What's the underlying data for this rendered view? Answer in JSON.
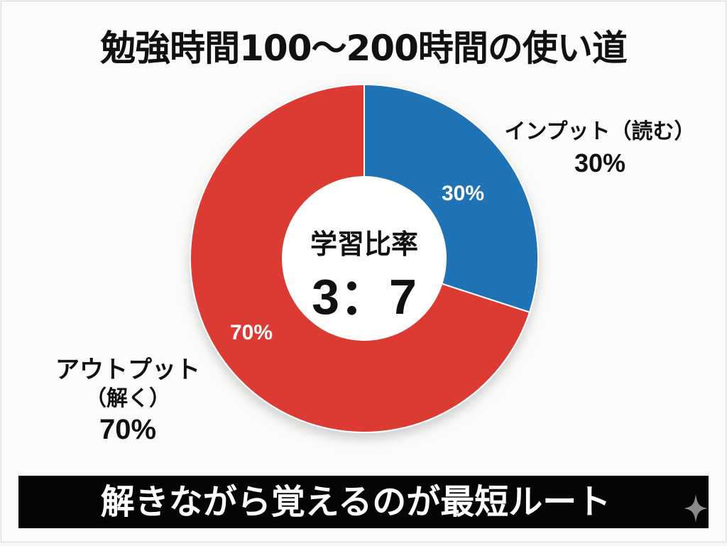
{
  "title": "勉強時間100〜200時間の使い道",
  "chart_data": {
    "type": "pie",
    "variant": "donut",
    "title": "勉強時間100〜200時間の使い道",
    "categories": [
      "インプット（読む）",
      "アウトプット（解く）"
    ],
    "values": [
      30,
      70
    ],
    "unit": "%",
    "colors": [
      "#1f72b4",
      "#dc3b33"
    ],
    "slice_labels": [
      "30%",
      "70%"
    ],
    "center_text": [
      "学習比率",
      "3：7"
    ],
    "start_angle_deg": 0,
    "direction": "clockwise",
    "legend": "callouts outside slices"
  },
  "center": {
    "title": "学習比率",
    "ratio": "3：7"
  },
  "slices": [
    {
      "name": "インプット（読む）",
      "percent_label": "30%"
    },
    {
      "name": "アウトプット（解く）",
      "percent_label": "70%"
    }
  ],
  "callouts": {
    "input": {
      "name": "インプット（読む）",
      "pct": "30%"
    },
    "output": {
      "name": "アウトプット",
      "sub": "（解く）",
      "pct": "70%"
    }
  },
  "banner": {
    "text": "解きながら覚えるのが最短ルート"
  },
  "colors": {
    "input": "#1f72b4",
    "output": "#dc3b33",
    "banner_bg": "#050505"
  }
}
